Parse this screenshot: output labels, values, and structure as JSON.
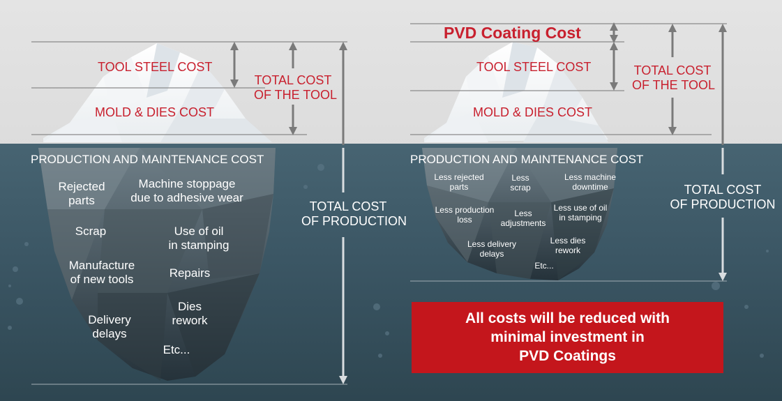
{
  "left_iceberg": {
    "above": {
      "tool_steel": "TOOL STEEL COST",
      "mold_dies": "MOLD & DIES COST",
      "total_tool": [
        "TOTAL COST",
        "OF THE TOOL"
      ]
    },
    "below_heading": "PRODUCTION AND MAINTENANCE COST",
    "below_items": {
      "rejected": [
        "Rejected",
        "parts"
      ],
      "stoppage": [
        "Machine stoppage",
        "due to adhesive wear"
      ],
      "scrap": "Scrap",
      "oil": [
        "Use of oil",
        "in stamping"
      ],
      "manufacture": [
        "Manufacture",
        "of new tools"
      ],
      "repairs": "Repairs",
      "delivery": [
        "Delivery",
        "delays"
      ],
      "dies": [
        "Dies",
        "rework"
      ],
      "etc": "Etc..."
    },
    "total_production": [
      "TOTAL COST",
      "OF PRODUCTION"
    ]
  },
  "right_iceberg": {
    "pvd_title": "PVD Coating Cost",
    "above": {
      "tool_steel": "TOOL STEEL COST",
      "mold_dies": "MOLD & DIES COST",
      "total_tool": [
        "TOTAL COST",
        "OF THE TOOL"
      ]
    },
    "below_heading": "PRODUCTION AND MAINTENANCE COST",
    "below_items": {
      "rejected": [
        "Less rejected",
        "parts"
      ],
      "scrap": [
        "Less",
        "scrap"
      ],
      "downtime": [
        "Less machine",
        "downtime"
      ],
      "production_loss": [
        "Less production",
        "loss"
      ],
      "adjustments": [
        "Less",
        "adjustments"
      ],
      "oil": [
        "Less use of oil",
        "in stamping"
      ],
      "delivery": [
        "Less delivery",
        "delays"
      ],
      "dies": [
        "Less dies",
        "rework"
      ],
      "etc": "Etc..."
    },
    "total_production": [
      "TOTAL COST",
      "OF PRODUCTION"
    ]
  },
  "banner": {
    "text": [
      "All costs will be reduced with",
      "minimal investment in",
      "PVD Coatings"
    ]
  },
  "colors": {
    "red_text": "#c8202e",
    "banner": "#c4161c",
    "water": "#3b5664",
    "arrow": "#7a7a7a"
  }
}
